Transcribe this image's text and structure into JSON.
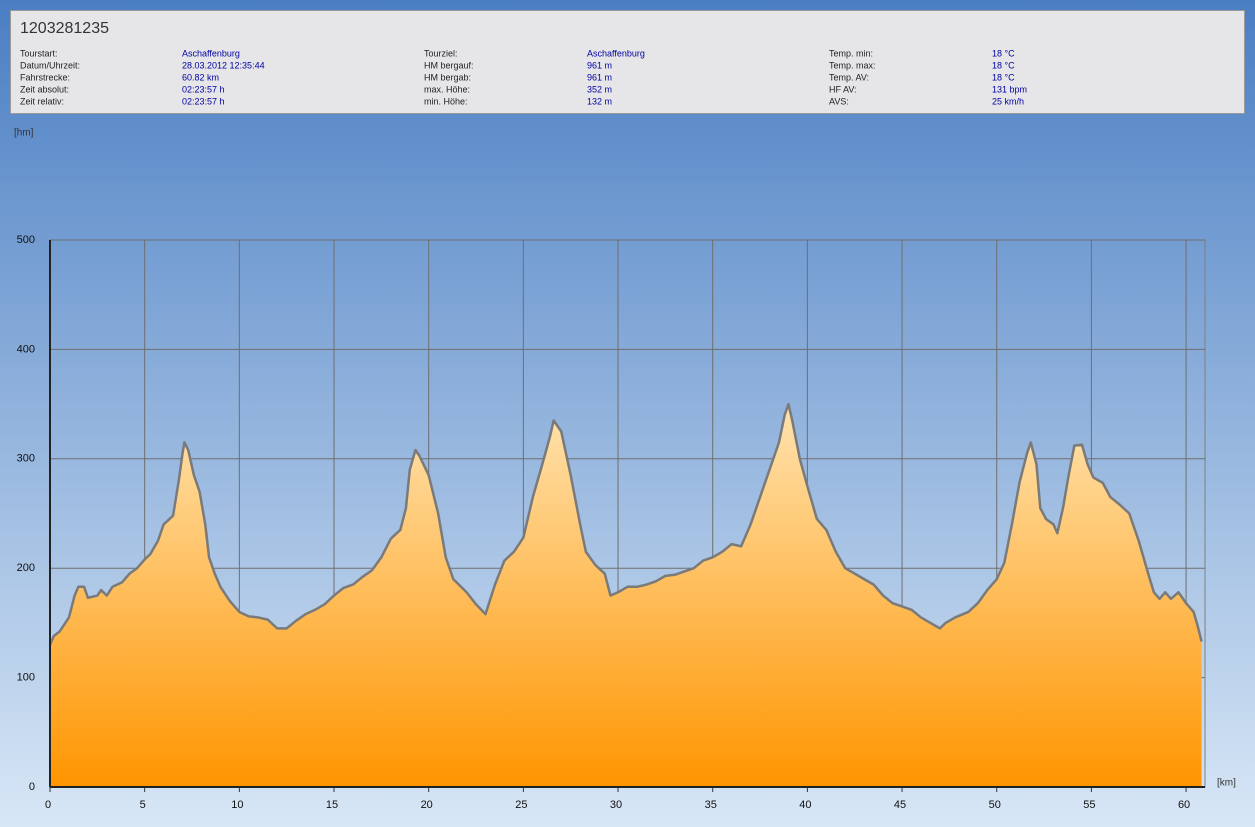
{
  "info": {
    "title": "1203281235",
    "columns": [
      [
        [
          "Tourstart:",
          "Aschaffenburg"
        ],
        [
          "Datum/Uhrzeit:",
          "28.03.2012 12:35:44"
        ],
        [
          "Fahrstrecke:",
          "60.82 km"
        ],
        [
          "Zeit absolut:",
          "02:23:57 h"
        ],
        [
          "Zeit relativ:",
          "02:23:57 h"
        ]
      ],
      [
        [
          "Tourziel:",
          "Aschaffenburg"
        ],
        [
          "HM bergauf:",
          "961 m"
        ],
        [
          "HM bergab:",
          "961 m"
        ],
        [
          "max. Höhe:",
          "352 m"
        ],
        [
          "min. Höhe:",
          "132 m"
        ]
      ],
      [
        [
          "Temp. min:",
          "18 °C"
        ],
        [
          "Temp. max:",
          "18 °C"
        ],
        [
          "Temp. AV:",
          "18 °C"
        ],
        [
          "HF AV:",
          "131 bpm"
        ],
        [
          "AVS:",
          "25 km/h"
        ]
      ]
    ]
  },
  "chart_data": {
    "type": "area",
    "y_label": "[hm]",
    "x_label": "[km]",
    "gradient": [
      "#ffe3b0",
      "#ff9500"
    ],
    "line_color": "#7a7a7a",
    "grid": true,
    "xlim": [
      0,
      61
    ],
    "ylim": [
      0,
      500
    ],
    "xticks": [
      0,
      5,
      10,
      15,
      20,
      25,
      30,
      35,
      40,
      45,
      50,
      55,
      60
    ],
    "yticks": [
      0,
      100,
      200,
      300,
      400,
      500
    ],
    "x": [
      0,
      0.2,
      0.5,
      1,
      1.3,
      1.5,
      1.8,
      2,
      2.5,
      2.7,
      3,
      3.3,
      3.8,
      4.2,
      4.6,
      5,
      5.3,
      5.7,
      6,
      6.5,
      6.8,
      7,
      7.1,
      7.3,
      7.6,
      7.9,
      8.2,
      8.4,
      8.7,
      9,
      9.5,
      10,
      10.5,
      11,
      11.5,
      12,
      12.5,
      13,
      13.5,
      14,
      14.5,
      15,
      15.5,
      16,
      16.5,
      17,
      17.5,
      18,
      18.5,
      18.8,
      19,
      19.3,
      19.5,
      20,
      20.5,
      20.9,
      21.3,
      22,
      22.5,
      23,
      23.5,
      24,
      24.5,
      25,
      25.5,
      26,
      26.4,
      26.6,
      27,
      27.5,
      28,
      28.3,
      28.8,
      29.3,
      29.6,
      30,
      30.5,
      31,
      31.5,
      32,
      32.5,
      33,
      34,
      34.5,
      35,
      35.5,
      36,
      36.5,
      37,
      37.5,
      38,
      38.5,
      38.8,
      39,
      39.2,
      39.6,
      40,
      40.5,
      41,
      41.5,
      42,
      42.5,
      43,
      43.5,
      44,
      44.5,
      45,
      45.5,
      46,
      46.5,
      47,
      47.3,
      47.8,
      48.5,
      49,
      49.5,
      50,
      50.4,
      50.8,
      51.2,
      51.6,
      51.8,
      52.1,
      52.3,
      52.6,
      53,
      53.2,
      53.5,
      53.8,
      54.1,
      54.5,
      54.8,
      55.1,
      55.6,
      56,
      56.5,
      57,
      57.5,
      58,
      58.3,
      58.6,
      58.9,
      59.2,
      59.6,
      60,
      60.4,
      60.6,
      60.82
    ],
    "values": [
      130,
      138,
      142,
      155,
      175,
      183,
      183,
      173,
      175,
      180,
      175,
      183,
      187,
      195,
      200,
      208,
      213,
      225,
      240,
      248,
      280,
      305,
      315,
      308,
      285,
      270,
      240,
      210,
      195,
      183,
      170,
      160,
      156,
      155,
      153,
      145,
      145,
      152,
      158,
      162,
      167,
      175,
      182,
      185,
      192,
      198,
      210,
      227,
      235,
      255,
      290,
      308,
      303,
      285,
      250,
      210,
      190,
      178,
      167,
      158,
      185,
      207,
      215,
      228,
      265,
      295,
      320,
      335,
      325,
      285,
      240,
      215,
      203,
      195,
      175,
      178,
      183,
      183,
      185,
      188,
      193,
      194,
      200,
      207,
      210,
      215,
      222,
      220,
      240,
      265,
      290,
      315,
      340,
      350,
      335,
      300,
      275,
      245,
      235,
      215,
      200,
      195,
      190,
      185,
      175,
      168,
      165,
      162,
      155,
      150,
      145,
      150,
      155,
      160,
      168,
      180,
      190,
      205,
      240,
      278,
      305,
      315,
      295,
      255,
      245,
      240,
      232,
      255,
      285,
      312,
      313,
      295,
      283,
      278,
      265,
      258,
      250,
      225,
      195,
      178,
      172,
      178,
      172,
      178,
      168,
      160,
      148,
      133
    ]
  }
}
